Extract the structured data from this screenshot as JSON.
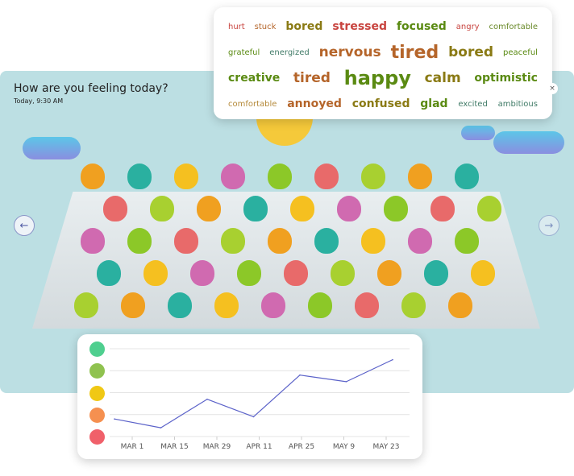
{
  "header": {
    "title": "How are you feeling today?",
    "timestamp": "Today, 9:30 AM"
  },
  "nav": {
    "prev_icon": "←",
    "next_icon": "→",
    "close_icon": "×"
  },
  "word_cloud": {
    "rows": [
      [
        {
          "word": "hurt",
          "size": 10,
          "color": "#c8443f"
        },
        {
          "word": "stuck",
          "size": 10,
          "color": "#b5652a"
        },
        {
          "word": "bored",
          "size": 14,
          "color": "#8a7a14"
        },
        {
          "word": "stressed",
          "size": 14,
          "color": "#c8443f"
        },
        {
          "word": "focused",
          "size": 14,
          "color": "#5a8a12"
        },
        {
          "word": "angry",
          "size": 10,
          "color": "#c8443f"
        },
        {
          "word": "comfortable",
          "size": 10,
          "color": "#6a8a2a"
        }
      ],
      [
        {
          "word": "grateful",
          "size": 10,
          "color": "#5a8a12"
        },
        {
          "word": "energized",
          "size": 10,
          "color": "#3f7a66"
        },
        {
          "word": "nervous",
          "size": 17,
          "color": "#b5652a"
        },
        {
          "word": "tired",
          "size": 22,
          "color": "#b5652a"
        },
        {
          "word": "bored",
          "size": 17,
          "color": "#8a7a14"
        },
        {
          "word": "peaceful",
          "size": 10,
          "color": "#5a8a12"
        }
      ],
      [
        {
          "word": "creative",
          "size": 14,
          "color": "#5a8a12"
        },
        {
          "word": "tired",
          "size": 17,
          "color": "#b5652a"
        },
        {
          "word": "happy",
          "size": 24,
          "color": "#5a8a12"
        },
        {
          "word": "calm",
          "size": 17,
          "color": "#8a7a14"
        },
        {
          "word": "optimistic",
          "size": 14,
          "color": "#5a8a12"
        }
      ],
      [
        {
          "word": "comfortable",
          "size": 10,
          "color": "#b58a3a"
        },
        {
          "word": "annoyed",
          "size": 14,
          "color": "#b5652a"
        },
        {
          "word": "confused",
          "size": 14,
          "color": "#8a7a14"
        },
        {
          "word": "glad",
          "size": 14,
          "color": "#5a8a12"
        },
        {
          "word": "excited",
          "size": 10,
          "color": "#3f7a66"
        },
        {
          "word": "ambitious",
          "size": 10,
          "color": "#3f7a66"
        }
      ]
    ]
  },
  "chart_data": {
    "type": "line",
    "categories": [
      "MAR 1",
      "MAR 15",
      "MAR 29",
      "APR 11",
      "APR 25",
      "MAY 9",
      "MAY 23"
    ],
    "y_levels": [
      {
        "icon": "very-happy-face",
        "color": "#4fcf8f"
      },
      {
        "icon": "happy-face",
        "color": "#8fc24f"
      },
      {
        "icon": "neutral-face",
        "color": "#f0c814"
      },
      {
        "icon": "sad-face",
        "color": "#f59050"
      },
      {
        "icon": "very-upset-face",
        "color": "#f0606a"
      }
    ],
    "ylim": [
      1,
      5
    ],
    "values": [
      1.8,
      1.4,
      2.7,
      1.9,
      3.8,
      3.5,
      4.5
    ],
    "line_color": "#5b62c9",
    "grid": true
  }
}
